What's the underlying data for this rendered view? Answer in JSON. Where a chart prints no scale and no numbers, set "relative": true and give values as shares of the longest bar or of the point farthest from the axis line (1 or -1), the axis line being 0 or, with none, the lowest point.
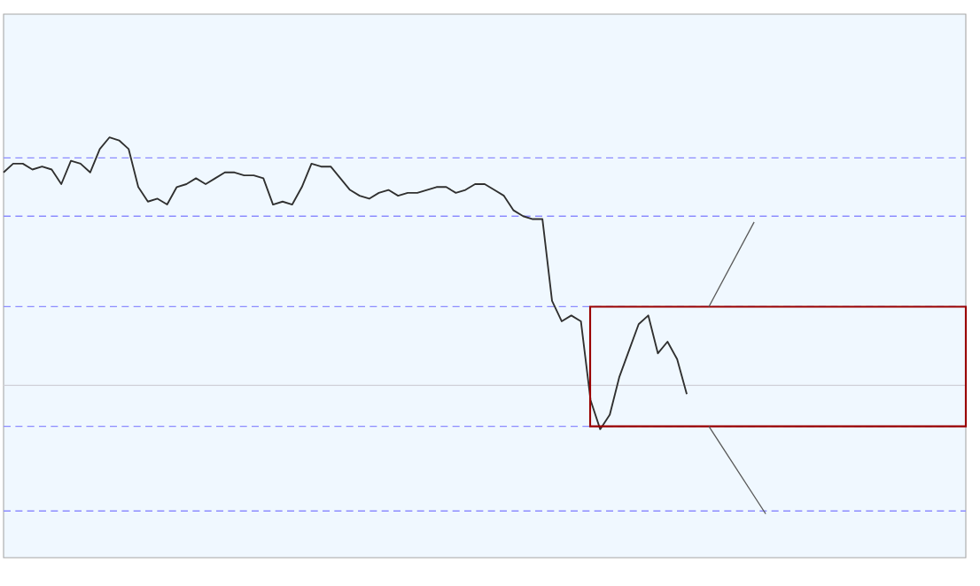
{
  "chart_data": {
    "type": "line",
    "relative": true,
    "color": "#303030",
    "tick_labels": false,
    "categories": [
      null,
      null,
      null,
      null,
      null,
      null,
      null,
      null,
      null,
      null,
      null,
      null,
      null,
      null,
      null,
      null,
      null,
      null,
      null,
      null,
      null,
      null,
      null,
      null,
      null,
      null,
      null,
      null,
      null,
      null,
      null,
      null,
      null,
      null,
      null,
      null,
      null,
      null,
      null,
      null,
      null,
      null,
      null,
      null,
      null,
      null,
      null,
      null,
      null,
      null,
      null,
      null,
      null,
      null,
      null,
      null,
      null,
      null,
      null,
      null,
      null,
      null,
      null,
      null,
      null,
      null,
      null,
      null,
      null,
      null,
      null,
      null
    ],
    "values": [
      0.88,
      0.91,
      0.91,
      0.89,
      0.9,
      0.89,
      0.84,
      0.92,
      0.91,
      0.88,
      0.96,
      1.0,
      0.99,
      0.96,
      0.83,
      0.78,
      0.79,
      0.77,
      0.83,
      0.84,
      0.86,
      0.84,
      0.86,
      0.88,
      0.88,
      0.87,
      0.87,
      0.86,
      0.77,
      0.78,
      0.77,
      0.83,
      0.91,
      0.9,
      0.9,
      0.86,
      0.82,
      0.8,
      0.79,
      0.81,
      0.82,
      0.8,
      0.81,
      0.81,
      0.82,
      0.83,
      0.83,
      0.81,
      0.82,
      0.84,
      0.84,
      0.82,
      0.8,
      0.75,
      0.73,
      0.72,
      0.72,
      0.44,
      0.37,
      0.39,
      0.37,
      0.1,
      0.0,
      0.05,
      0.18,
      0.27,
      0.36,
      0.39,
      0.26,
      0.3,
      0.24,
      0.12
    ],
    "ref_lines": [
      {
        "axis": "y",
        "value": 0.93,
        "color": "#8c8cff",
        "line_style": "dashed"
      },
      {
        "axis": "y",
        "value": 0.73,
        "color": "#8c8cff",
        "line_style": "dashed"
      },
      {
        "axis": "y",
        "value": 0.42,
        "color": "#8c8cff",
        "line_style": "dashed"
      },
      {
        "axis": "y",
        "value": 0.01,
        "color": "#8c8cff",
        "line_style": "dashed"
      },
      {
        "axis": "y",
        "value": -0.28,
        "color": "#8c8cff",
        "line_style": "dashed"
      },
      {
        "axis": "y",
        "value": 0.15,
        "color": "#d0d0d8",
        "line_style": "solid"
      }
    ]
  }
}
